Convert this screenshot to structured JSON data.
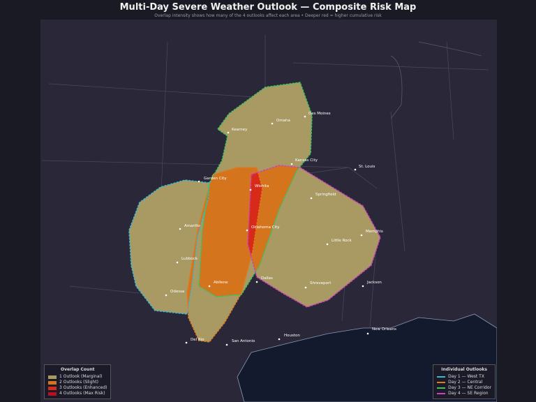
{
  "title": "Multi-Day Severe Weather Outlook — Composite Risk Map",
  "subtitle": "Overlap intensity shows how many of the 4 outlooks affect each area  •  Deeper red = higher cumulative risk",
  "colors": {
    "land": "#2a2738",
    "water": "#131a2e",
    "one": "#a89a62",
    "two": "#d4741c",
    "three": "#d82a18",
    "four": "#b81020"
  },
  "overlap_legend": {
    "title": "Overlap Count",
    "items": [
      {
        "label": "1 Outlook (Marginal)",
        "color": "#a89a62"
      },
      {
        "label": "2 Outlooks (Slight)",
        "color": "#d4741c"
      },
      {
        "label": "3 Outlooks (Enhanced)",
        "color": "#d82a18"
      },
      {
        "label": "4 Outlooks (Max Risk)",
        "color": "#b81020"
      }
    ]
  },
  "outlook_legend": {
    "title": "Individual Outlooks",
    "items": [
      {
        "label": "Day 1 — West TX",
        "color": "#3fb8d0"
      },
      {
        "label": "Day 2 — Central",
        "color": "#e07a20"
      },
      {
        "label": "Day 3 — NE Corridor",
        "color": "#3cc060"
      },
      {
        "label": "Day 4 — SE Region",
        "color": "#d040c0"
      }
    ]
  },
  "cities": [
    "Des Moines",
    "Omaha",
    "Kearney",
    "Kansas City",
    "St. Louis",
    "Garden City",
    "Wichita",
    "Springfield",
    "Amarillo",
    "Oklahoma City",
    "Memphis",
    "Little Rock",
    "Lubbock",
    "Abilene",
    "Dallas",
    "Shreveport",
    "Jackson",
    "Odessa",
    "Del Rio",
    "San Antonio",
    "Houston",
    "New Orleans"
  ]
}
